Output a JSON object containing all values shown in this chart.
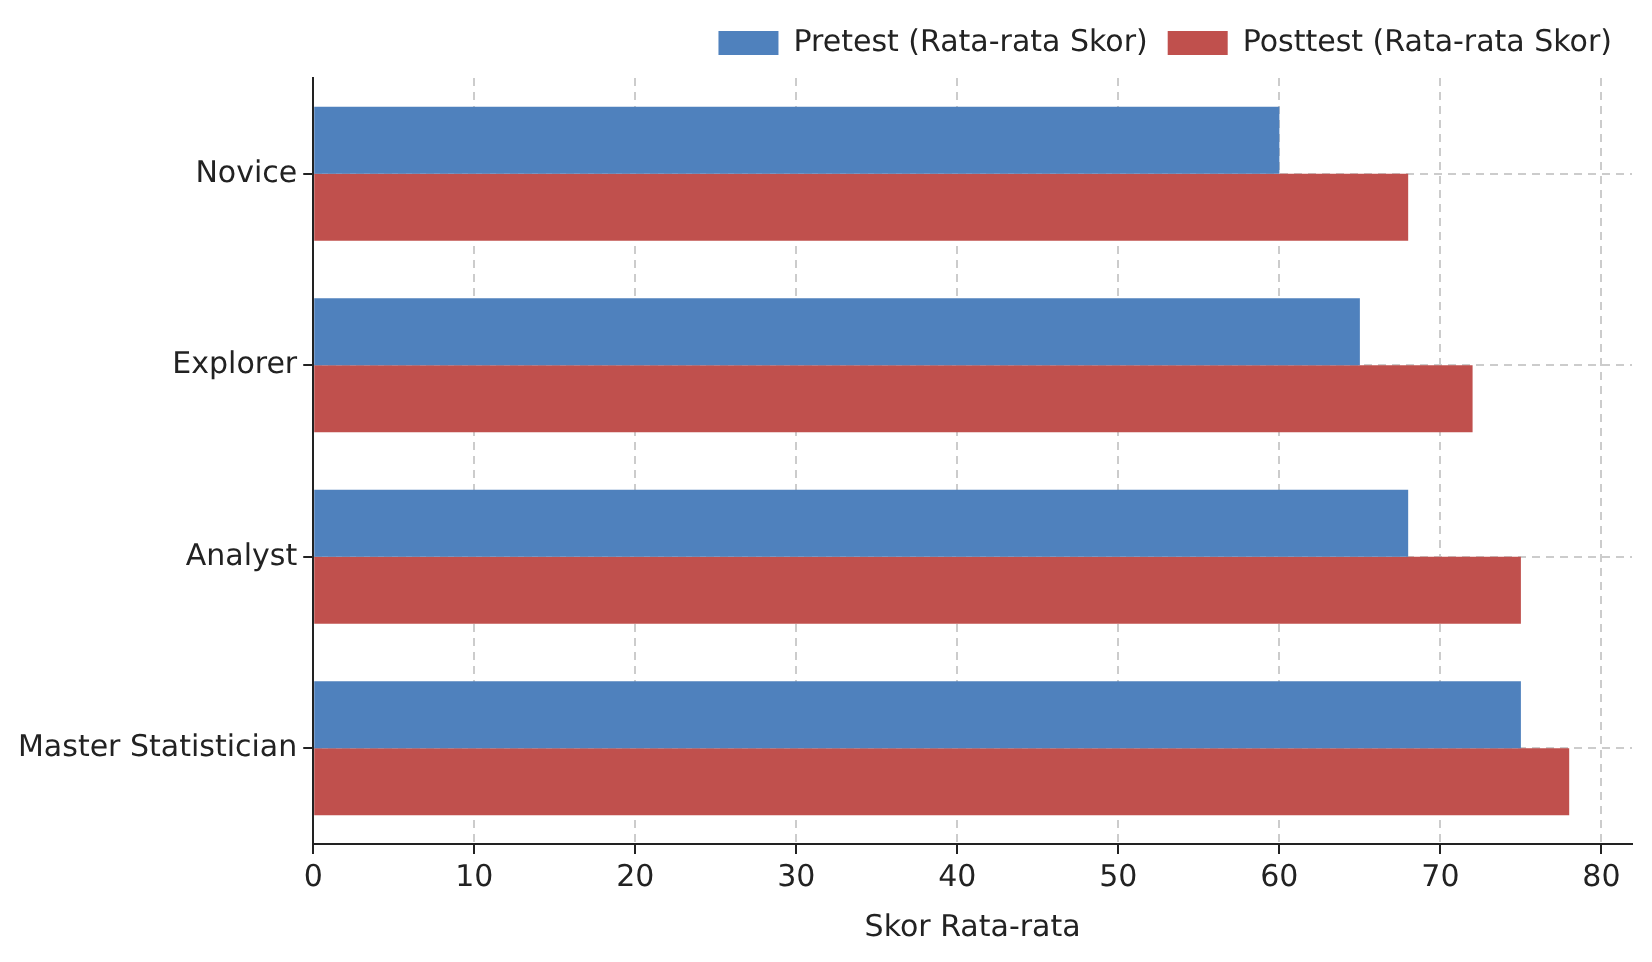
{
  "chart_data": {
    "type": "bar",
    "orientation": "horizontal",
    "xlabel": "Skor Rata-rata",
    "categories": [
      "Novice",
      "Explorer",
      "Analyst",
      "Master Statistician"
    ],
    "series": [
      {
        "name": "Pretest (Rata-rata Skor)",
        "color": "#4f81bd",
        "values": [
          60,
          65,
          68,
          75
        ]
      },
      {
        "name": "Posttest (Rata-rata Skor)",
        "color": "#c0504d",
        "values": [
          68,
          72,
          75,
          78
        ]
      }
    ],
    "xlim": [
      0,
      81.9
    ],
    "xticks": [
      0,
      10,
      20,
      30,
      40,
      50,
      60,
      70,
      80
    ],
    "grid": true,
    "legend": "top right"
  }
}
